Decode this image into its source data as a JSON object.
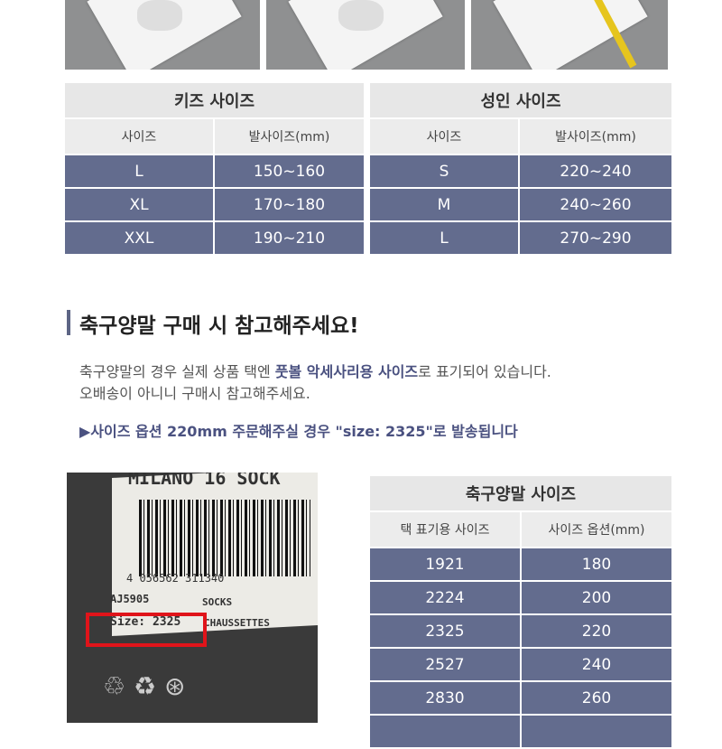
{
  "kids_table": {
    "title": "키즈 사이즈",
    "headers": [
      "사이즈",
      "발사이즈(mm)"
    ],
    "rows": [
      [
        "L",
        "150~160"
      ],
      [
        "XL",
        "170~180"
      ],
      [
        "XXL",
        "190~210"
      ]
    ]
  },
  "adult_table": {
    "title": "성인 사이즈",
    "headers": [
      "사이즈",
      "발사이즈(mm)"
    ],
    "rows": [
      [
        "S",
        "220~240"
      ],
      [
        "M",
        "240~260"
      ],
      [
        "L",
        "270~290"
      ]
    ]
  },
  "notice": {
    "title": "축구양말 구매 시 참고해주세요!",
    "line1_a": "축구양말의 경우 실제 상품 택엔 ",
    "line1_highlight": "풋볼 악세사리용 사이즈",
    "line1_b": "로 표기되어 있습니다.",
    "line2": "오배송이 아니니 구매시 참고해주세요.",
    "example": "▶사이즈 옵션 220mm 주문해주실 경우 \"size: 2325\"로 발송됩니다"
  },
  "tag_photo": {
    "product": "MILANO 16 SOCK",
    "barcode": "4  056562  311340",
    "article": "AJ5905",
    "type": "SOCKS",
    "size": "Size: 2325",
    "type_fr": "CHAUSSETTES"
  },
  "soccer_table": {
    "title": "축구양말 사이즈",
    "headers": [
      "택 표기용 사이즈",
      "사이즈 옵션(mm)"
    ],
    "rows": [
      [
        "1921",
        "180"
      ],
      [
        "2224",
        "200"
      ],
      [
        "2325",
        "220"
      ],
      [
        "2527",
        "240"
      ],
      [
        "2830",
        "260"
      ]
    ]
  },
  "colors": {
    "row_bg": "#636c8e",
    "header_bg": "#e7e7e7",
    "accent": "#4a5180",
    "highlight_box": "#e0141a"
  }
}
